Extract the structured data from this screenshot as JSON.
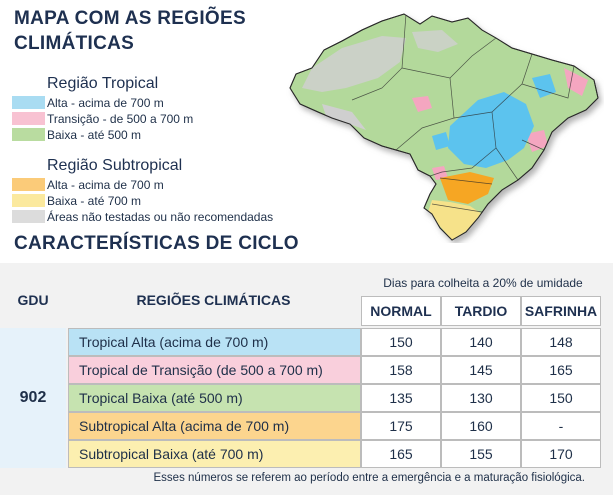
{
  "header": {
    "title_line1": "MAPA COM AS REGIÕES",
    "title_line2": "CLIMÁTICAS"
  },
  "legend": {
    "tropical_title": "Região Tropical",
    "subtropical_title": "Região Subtropical",
    "tropical_items": [
      {
        "label": "Alta - acima de 700 m",
        "color": "#a9dcf2"
      },
      {
        "label": "Transição - de 500 a 700 m",
        "color": "#f8c2d2"
      },
      {
        "label": "Baixa - até 500 m",
        "color": "#b9dca0"
      }
    ],
    "subtropical_items": [
      {
        "label": "Alta - acima de 700 m",
        "color": "#fbcb79"
      },
      {
        "label": "Baixa - até 700 m",
        "color": "#fbe99e"
      },
      {
        "label": "Áreas não testadas ou não recomendadas",
        "color": "#dcdcdc"
      }
    ]
  },
  "map": {
    "colors": {
      "low_tropical": "#b3d99b",
      "high_tropical": "#5cc3ee",
      "transition": "#f4a6c0",
      "high_subtropical": "#f6a623",
      "low_subtropical": "#f6e28a",
      "untested": "#cfcfcf",
      "border": "#2a2a2a"
    }
  },
  "section": {
    "title": "CARACTERÍSTICAS DE CICLO"
  },
  "table": {
    "gdu_header": "GDU",
    "regions_header": "REGIÕES CLIMÁTICAS",
    "days_caption": "Dias para colheita a 20% de umidade",
    "columns": [
      "NORMAL",
      "TARDIO",
      "SAFRINHA"
    ],
    "gdu_value": "902",
    "rows": [
      {
        "label": "Tropical Alta (acima de 700 m)",
        "values": [
          "150",
          "140",
          "148"
        ],
        "color": "#b9e2f5"
      },
      {
        "label": "Tropical de Transição (de 500 a 700 m)",
        "values": [
          "158",
          "145",
          "165"
        ],
        "color": "#f9cfdc"
      },
      {
        "label": "Tropical Baixa (até 500 m)",
        "values": [
          "135",
          "130",
          "150"
        ],
        "color": "#c6e3b0"
      },
      {
        "label": "Subtropical Alta (acima de 700 m)",
        "values": [
          "175",
          "160",
          "-"
        ],
        "color": "#fcd58e"
      },
      {
        "label": "Subtropical Baixa (até 700 m)",
        "values": [
          "165",
          "155",
          "170"
        ],
        "color": "#fcefb0"
      }
    ],
    "footnote": "Esses números se referem ao período entre a emergência e a maturação fisiológica."
  }
}
